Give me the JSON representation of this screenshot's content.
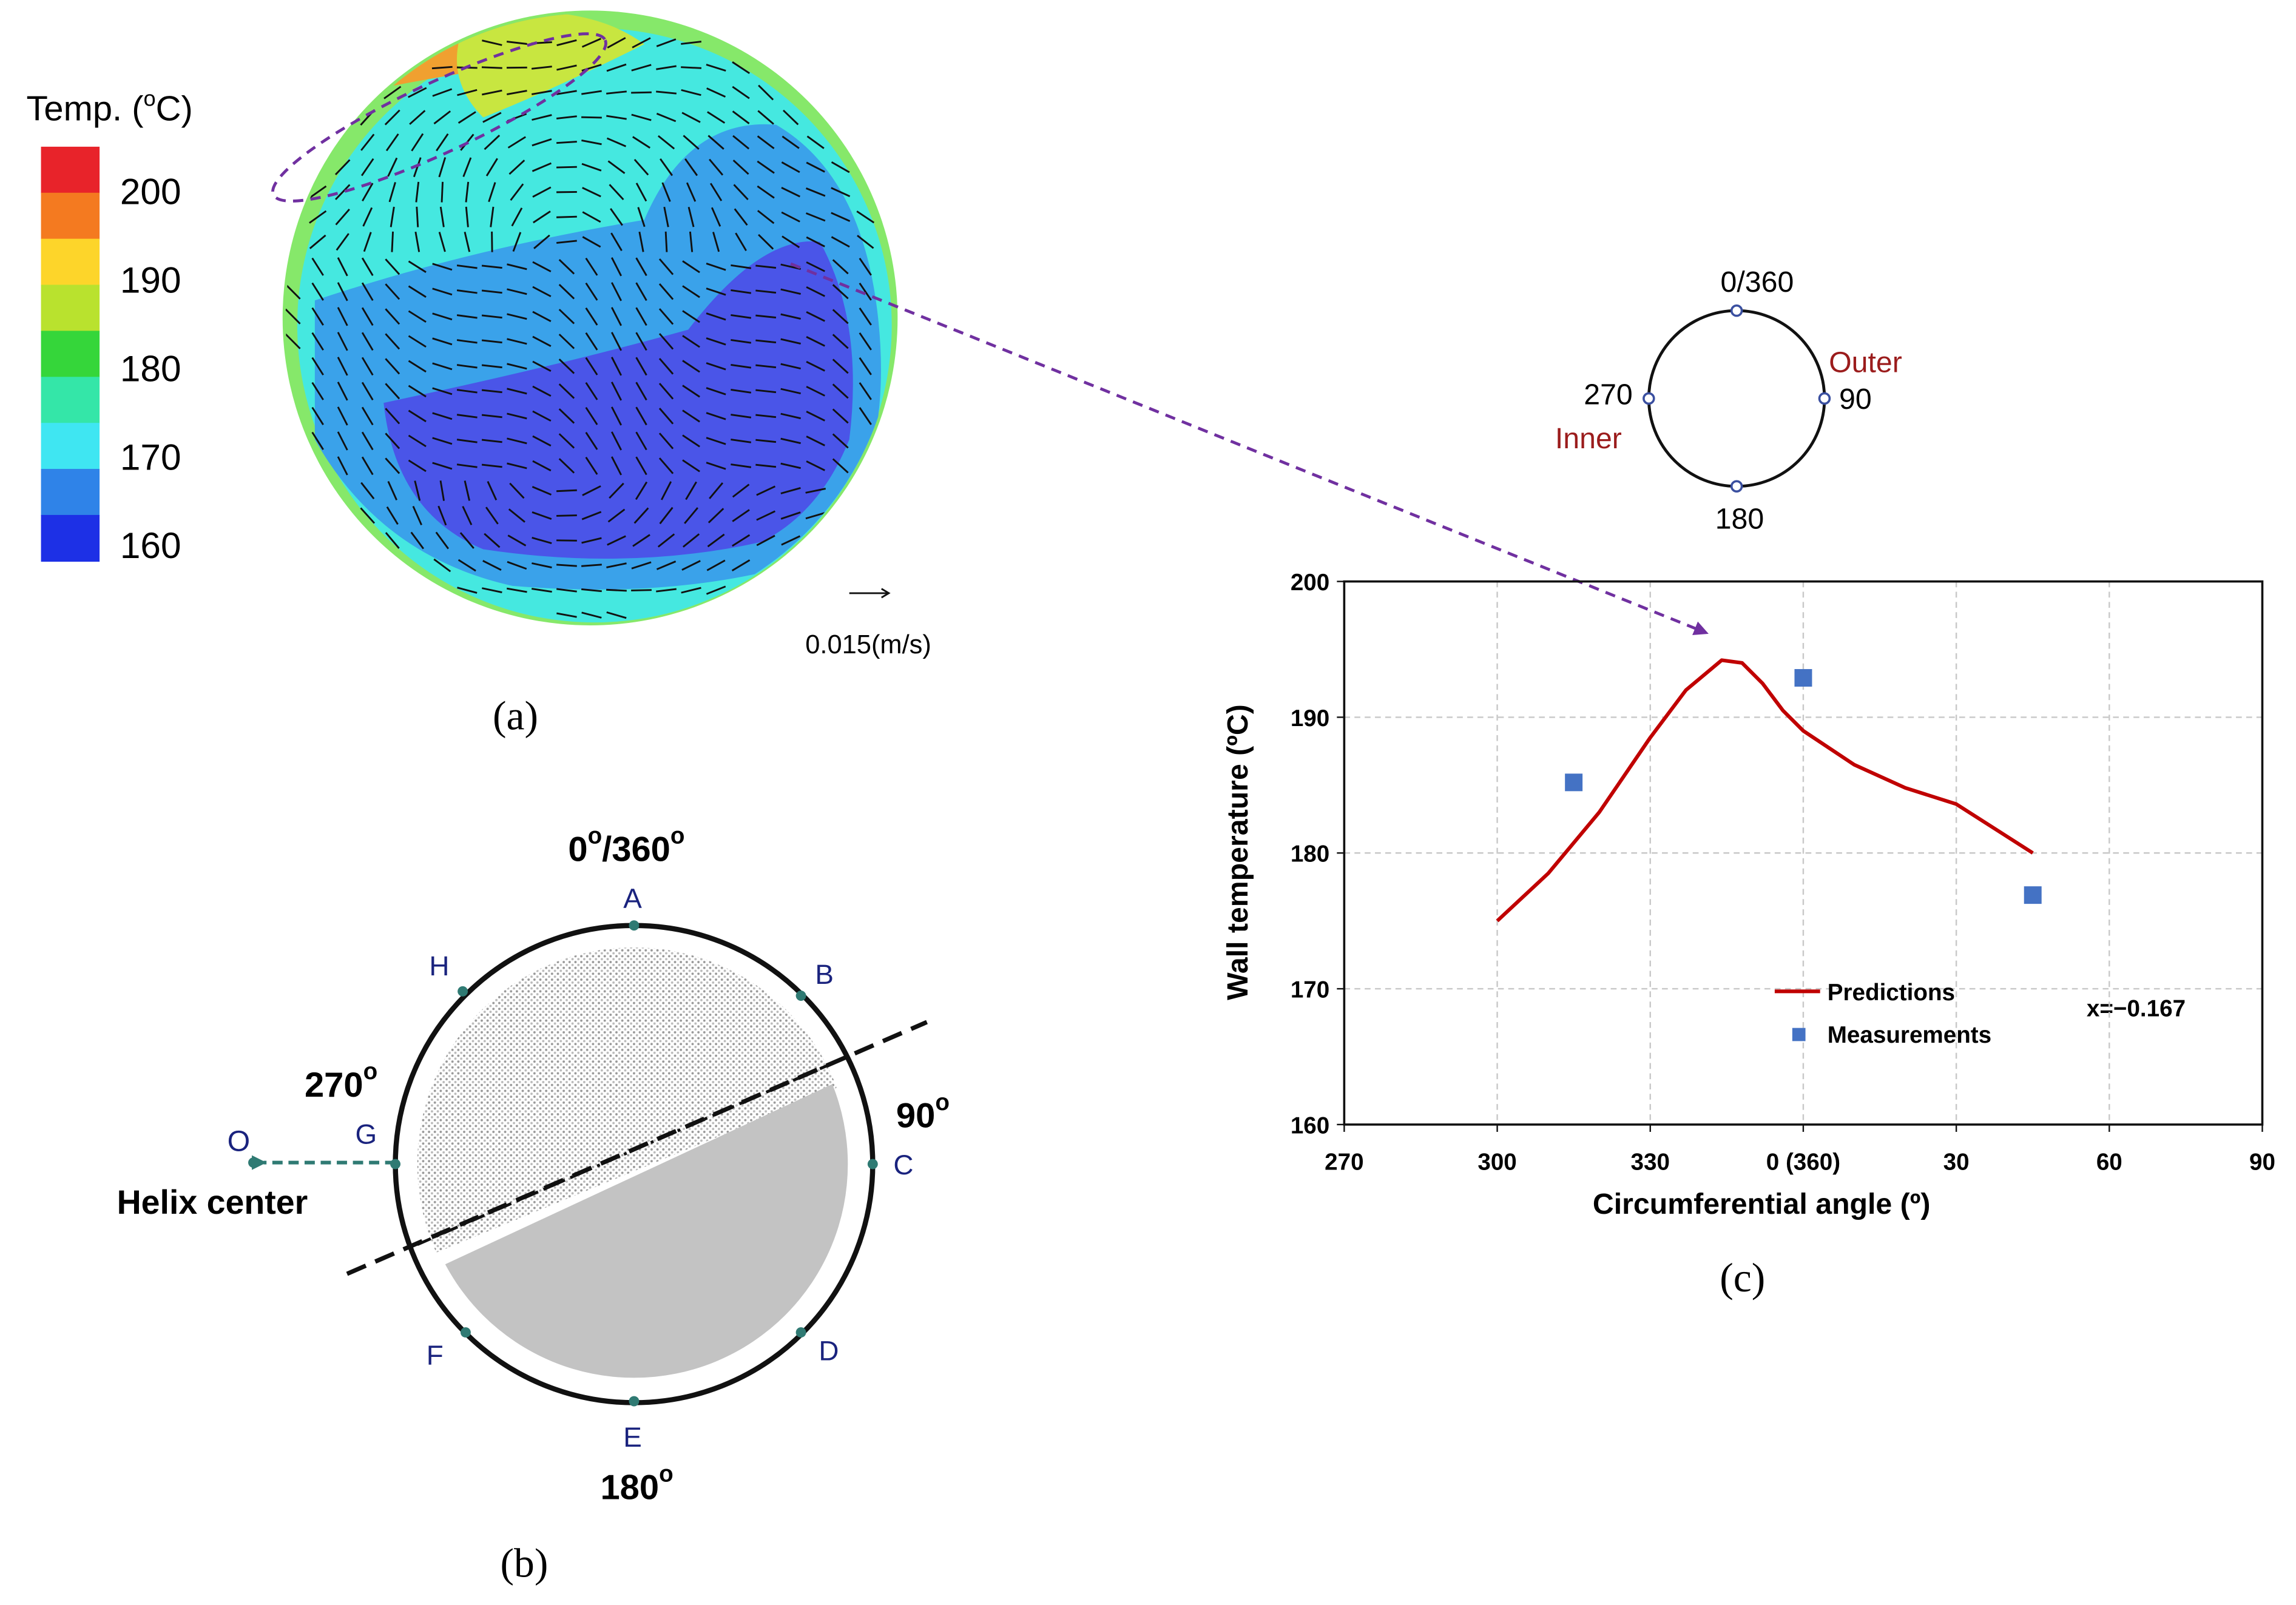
{
  "panel_a": {
    "colorbar": {
      "title": [
        "Temp. (",
        "o",
        "C)"
      ],
      "ticks": [
        200,
        190,
        180,
        170,
        160
      ],
      "lim": [
        158.2,
        205
      ],
      "colors": [
        "#e8232a",
        "#f47a20",
        "#fdd52a",
        "#b9e22e",
        "#35d63a",
        "#34e6a8",
        "#3fe6f2",
        "#2f83e8",
        "#1d30e6"
      ]
    },
    "velocity_scale": "0.015(m/s)",
    "caption": "(a)"
  },
  "orientation": {
    "top": "0/360",
    "right": "90",
    "bottom": "180",
    "left": "270",
    "outer": "Outer",
    "inner": "Inner"
  },
  "panel_b": {
    "top": [
      "0",
      "o",
      "/360",
      "o"
    ],
    "right": [
      "90",
      "o"
    ],
    "bottom": [
      "180",
      "o"
    ],
    "left": [
      "270",
      "o"
    ],
    "points": [
      "A",
      "B",
      "C",
      "D",
      "E",
      "F",
      "G",
      "H"
    ],
    "origin": "O",
    "helix": "Helix center",
    "caption": "(b)"
  },
  "chart_data": {
    "type": "line",
    "caption": "(c)",
    "x_label": "Circumferential angle (º)",
    "y_label": "Wall temperature (ºC)",
    "xlim": [
      270,
      450
    ],
    "ylim": [
      160,
      200
    ],
    "xticks": [
      270,
      300,
      330,
      {
        "value": 360,
        "label": "0 (360)"
      },
      {
        "value": 390,
        "label": "30"
      },
      {
        "value": 420,
        "label": "60"
      },
      {
        "value": 450,
        "label": "90"
      }
    ],
    "yticks": [
      160,
      170,
      180,
      190,
      200
    ],
    "grid": true,
    "series": [
      {
        "name": "Predictions",
        "color": "#c00000",
        "type": "line",
        "x": [
          300,
          310,
          320,
          330,
          337,
          344,
          348,
          352,
          356,
          360,
          370,
          380,
          390,
          405
        ],
        "values": [
          175,
          178.5,
          183,
          188.5,
          192,
          194.2,
          194,
          192.5,
          190.5,
          189,
          186.5,
          184.8,
          183.6,
          180
        ]
      },
      {
        "name": "Measurements",
        "color": "#4472c4",
        "type": "scatter",
        "x": [
          315,
          360,
          405
        ],
        "values": [
          185.2,
          192.9,
          176.9
        ]
      }
    ],
    "annotation": "x=−0.167"
  }
}
